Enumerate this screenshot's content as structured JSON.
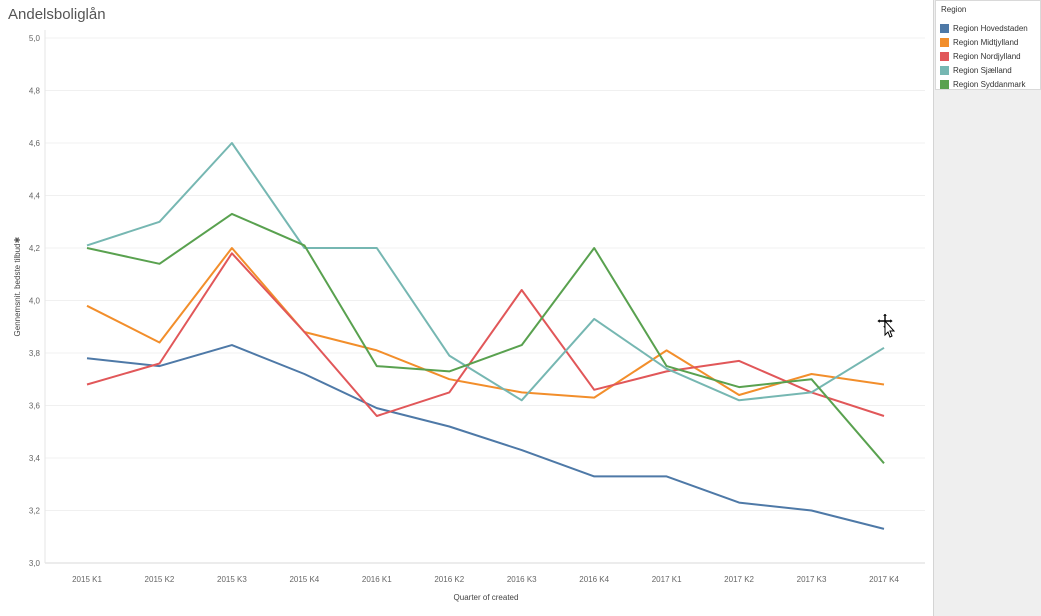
{
  "window": {
    "title": "Andelsboliglån"
  },
  "legend": {
    "title": "Region"
  },
  "cursor": {
    "icon": "move-cursor-icon"
  },
  "chart_data": {
    "type": "line",
    "title": "Andelsboliglån",
    "xlabel": "Quarter of created",
    "ylabel": "Gennemsnit. bedste tilbud",
    "ylim": [
      3.0,
      5.0
    ],
    "yticks": [
      "3,0",
      "3,2",
      "3,4",
      "3,6",
      "3,8",
      "4,0",
      "4,2",
      "4,4",
      "4,6",
      "4,8",
      "5,0"
    ],
    "categories": [
      "2015 K1",
      "2015 K2",
      "2015 K3",
      "2015 K4",
      "2016 K1",
      "2016 K2",
      "2016 K3",
      "2016 K4",
      "2017 K1",
      "2017 K2",
      "2017 K3",
      "2017 K4"
    ],
    "grid": true,
    "legend_position": "right",
    "series": [
      {
        "name": "Region Hovedstaden",
        "color": "#4e79a7",
        "values": [
          3.78,
          3.75,
          3.83,
          3.72,
          3.59,
          3.52,
          3.43,
          3.33,
          3.33,
          3.23,
          3.2,
          3.13
        ]
      },
      {
        "name": "Region Midtjylland",
        "color": "#f28e2b",
        "values": [
          3.98,
          3.84,
          4.2,
          3.88,
          3.81,
          3.7,
          3.65,
          3.63,
          3.81,
          3.64,
          3.72,
          3.68
        ]
      },
      {
        "name": "Region Nordjylland",
        "color": "#e15759",
        "values": [
          3.68,
          3.76,
          4.18,
          3.88,
          3.56,
          3.65,
          4.04,
          3.66,
          3.73,
          3.77,
          3.65,
          3.56
        ]
      },
      {
        "name": "Region Sjælland",
        "color": "#76b7b2",
        "values": [
          4.21,
          4.3,
          4.6,
          4.2,
          4.2,
          3.79,
          3.62,
          3.93,
          3.74,
          3.62,
          3.65,
          3.82
        ]
      },
      {
        "name": "Region Syddanmark",
        "color": "#59a14f",
        "values": [
          4.2,
          4.14,
          4.33,
          4.21,
          3.75,
          3.73,
          3.83,
          4.2,
          3.75,
          3.67,
          3.7,
          3.38
        ]
      }
    ]
  }
}
